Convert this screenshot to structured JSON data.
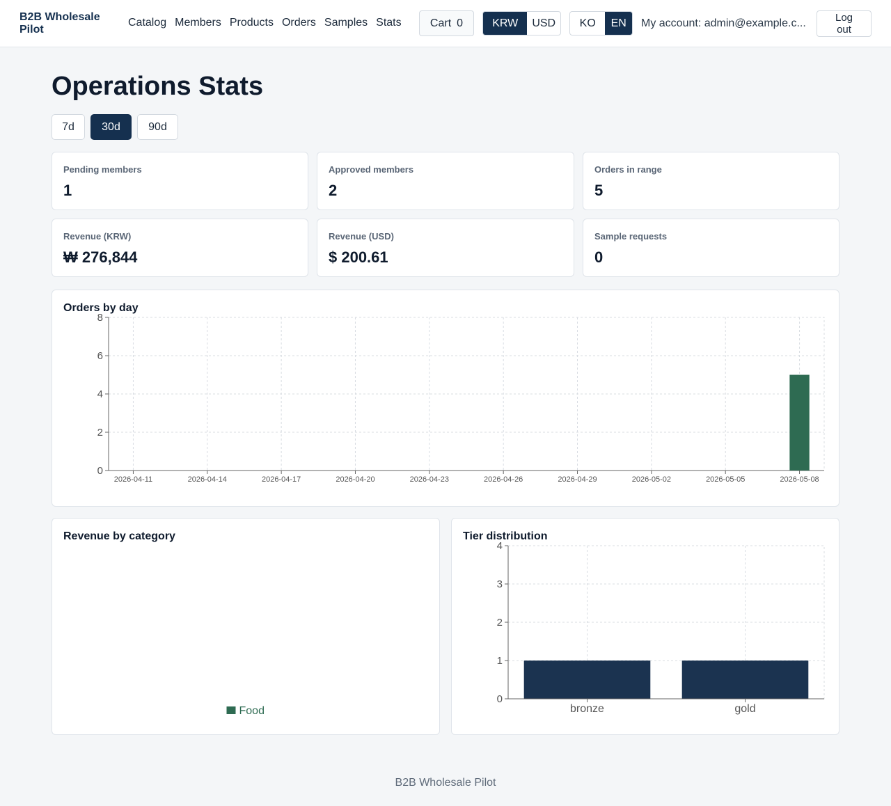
{
  "header": {
    "brand": "B2B Wholesale Pilot",
    "nav": [
      "Catalog",
      "Members",
      "Products",
      "Orders",
      "Samples",
      "Stats"
    ],
    "cart_label": "Cart",
    "cart_count": "0",
    "currency_options": [
      "KRW",
      "USD"
    ],
    "currency_selected": "KRW",
    "language_options": [
      "KO",
      "EN"
    ],
    "language_selected": "EN",
    "account": "My account: admin@example.c...",
    "logout_line1": "Log",
    "logout_line2": "out"
  },
  "page_title": "Operations Stats",
  "ranges": [
    "7d",
    "30d",
    "90d"
  ],
  "range_selected": "30d",
  "stats": [
    {
      "label": "Pending members",
      "value": "1"
    },
    {
      "label": "Approved members",
      "value": "2"
    },
    {
      "label": "Orders in range",
      "value": "5"
    },
    {
      "label": "Revenue (KRW)",
      "value": "₩ 276,844"
    },
    {
      "label": "Revenue (USD)",
      "value": "$ 200.61"
    },
    {
      "label": "Sample requests",
      "value": "0"
    }
  ],
  "panels": {
    "orders_by_day": "Orders by day",
    "revenue_by_category": "Revenue by category",
    "tier_distribution": "Tier distribution"
  },
  "colors": {
    "primary": "#15304f",
    "bar_green": "#2e6b52",
    "accent_navy": "#1b3350"
  },
  "chart_data": [
    {
      "type": "bar",
      "title": "Orders by day",
      "x_ticks": [
        "2026-04-11",
        "2026-04-14",
        "2026-04-17",
        "2026-04-20",
        "2026-04-23",
        "2026-04-26",
        "2026-04-29",
        "2026-05-02",
        "2026-05-05",
        "2026-05-08"
      ],
      "x_range": [
        "2026-04-10",
        "2026-05-09"
      ],
      "series": [
        {
          "x": [
            "2026-05-08"
          ],
          "values": [
            5
          ]
        }
      ],
      "ylim": [
        0,
        8
      ],
      "y_ticks": [
        0,
        2,
        4,
        6,
        8
      ],
      "grid": true
    },
    {
      "type": "pie",
      "title": "Revenue by category",
      "legend": [
        "Food"
      ],
      "legend_position": "bottom"
    },
    {
      "type": "bar",
      "title": "Tier distribution",
      "categories": [
        "bronze",
        "gold"
      ],
      "values": [
        1,
        1
      ],
      "ylim": [
        0,
        4
      ],
      "y_ticks": [
        0,
        1,
        2,
        3,
        4
      ],
      "grid": true
    }
  ],
  "footer": "B2B Wholesale Pilot"
}
